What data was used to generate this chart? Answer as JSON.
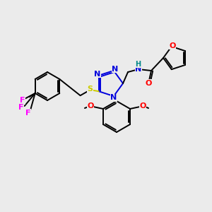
{
  "background_color": "#ebebeb",
  "atom_colors": {
    "N": "#0000dd",
    "O": "#ff0000",
    "S": "#cccc00",
    "F": "#ff00ff",
    "H": "#008888",
    "C": "#000000"
  },
  "figsize": [
    3.0,
    3.0
  ],
  "dpi": 100,
  "lw": 1.4
}
